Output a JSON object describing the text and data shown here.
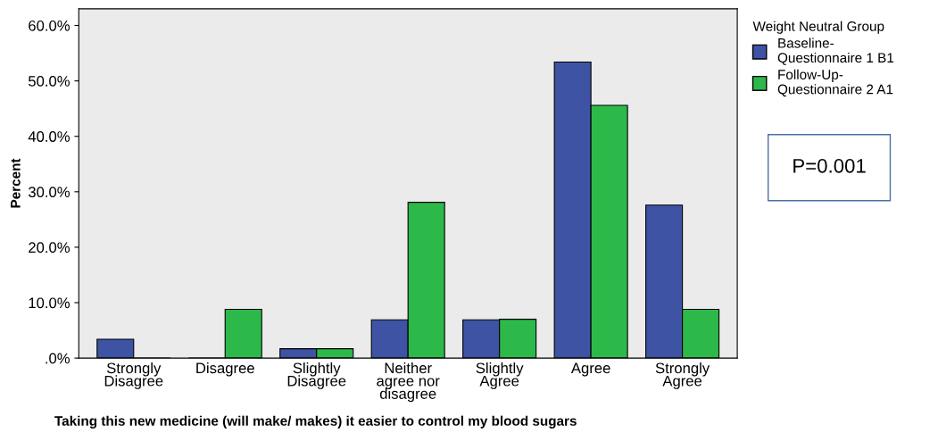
{
  "chart_data": {
    "type": "bar",
    "xlabel": "Taking this new medicine (will make/ makes) it easier to control my blood sugars",
    "ylabel": "Percent",
    "categories": [
      "Strongly\nDisagree",
      "Disagree",
      "Slightly\nDisagree",
      "Neither\nagree nor\ndisagree",
      "Slightly\nAgree",
      "Agree",
      "Strongly\nAgree"
    ],
    "series": [
      {
        "name": "Baseline-\nQuestionnaire 1 B1",
        "color": "#3e53a4",
        "values": [
          3.4,
          0,
          1.7,
          6.9,
          6.9,
          53.4,
          27.6
        ]
      },
      {
        "name": "Follow-Up-\nQuestionnaire 2 A1",
        "color": "#2db84a",
        "values": [
          0,
          8.8,
          1.7,
          28.1,
          7.0,
          45.6,
          8.8
        ]
      }
    ],
    "legend_title": "Weight Neutral Group",
    "legend": "right",
    "grid": false,
    "ylim": [
      0,
      63
    ],
    "yticks": [
      {
        "value": 0,
        "label": ".0%"
      },
      {
        "value": 10,
        "label": "10.0%"
      },
      {
        "value": 20,
        "label": "20.0%"
      },
      {
        "value": 30,
        "label": "30.0%"
      },
      {
        "value": 40,
        "label": "40.0%"
      },
      {
        "value": 50,
        "label": "50.0%"
      },
      {
        "value": 60,
        "label": "60.0%"
      }
    ],
    "annotations": [
      "P=0.001"
    ]
  }
}
